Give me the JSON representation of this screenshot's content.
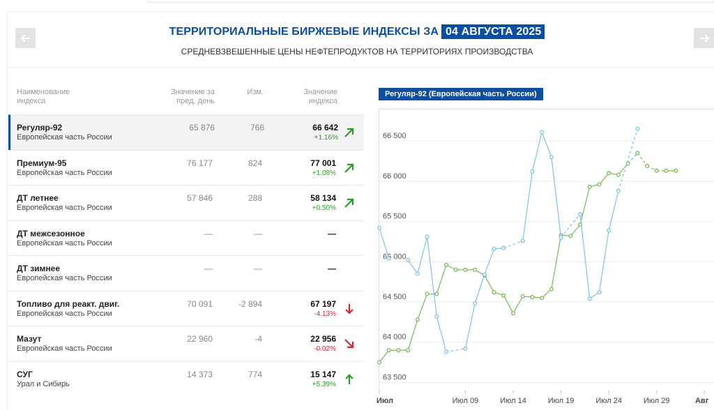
{
  "header": {
    "title": "ТЕРРИТОРИАЛЬНЫЕ БИРЖЕВЫЕ ИНДЕКСЫ ЗА",
    "date": "04 АВГУСТА 2025",
    "subtitle": "СРЕДНЕВЗВЕШЕННЫЕ ЦЕНЫ НЕФТЕПРОДУКТОВ НА ТЕРРИТОРИЯХ ПРОИЗВОДСТВА"
  },
  "nav": {
    "prev_icon": "arrow-left-icon",
    "next_icon": "arrow-right-icon"
  },
  "table": {
    "headers": {
      "name_line1": "Наименование",
      "name_line2": "индекса",
      "prev_line1": "Значение за",
      "prev_line2": "пред. день",
      "change": "Изм.",
      "current_line1": "Значение",
      "current_line2": "индекса"
    },
    "rows": [
      {
        "name": "Регуляр-92",
        "region": "Европейская часть России",
        "prev": "65 876",
        "change": "766",
        "current": "66 642",
        "pct": "+1.16%",
        "trend": "up-right"
      },
      {
        "name": "Премиум-95",
        "region": "Европейская часть России",
        "prev": "76 177",
        "change": "824",
        "current": "77 001",
        "pct": "+1.08%",
        "trend": "up-right"
      },
      {
        "name": "ДТ летнее",
        "region": "Европейская часть России",
        "prev": "57 846",
        "change": "288",
        "current": "58 134",
        "pct": "+0.50%",
        "trend": "up-right"
      },
      {
        "name": "ДТ межсезонное",
        "region": "Европейская часть России",
        "prev": "—",
        "change": "—",
        "current": "—",
        "pct": "",
        "trend": "none"
      },
      {
        "name": "ДТ зимнее",
        "region": "Европейская часть России",
        "prev": "—",
        "change": "—",
        "current": "—",
        "pct": "",
        "trend": "none"
      },
      {
        "name": "Топливо для реакт. двиг.",
        "region": "Европейская часть России",
        "prev": "70 091",
        "change": "-2 894",
        "current": "67 197",
        "pct": "-4.13%",
        "trend": "down"
      },
      {
        "name": "Мазут",
        "region": "Европейская часть России",
        "prev": "22 960",
        "change": "-4",
        "current": "22 956",
        "pct": "-0.02%",
        "trend": "down-right"
      },
      {
        "name": "СУГ",
        "region": "Урал и Сибирь",
        "prev": "14 373",
        "change": "774",
        "current": "15 147",
        "pct": "+5.39%",
        "trend": "up"
      }
    ]
  },
  "chart_label": "Регуляр-92 (Европейская часть России)",
  "colors": {
    "brand": "#0b4ea2",
    "up": "#2a9a2a",
    "down": "#d9262c",
    "series_green": "#79b957",
    "series_blue": "#7ec3e4"
  },
  "chart_data": {
    "type": "line",
    "y_ticks": [
      "63 500",
      "64 000",
      "64 500",
      "65 000",
      "65 500",
      "66 000",
      "66 500"
    ],
    "ylim": [
      63400,
      66900
    ],
    "x_ticks": [
      "Июл",
      "Июл 09",
      "Июл 14",
      "Июл 19",
      "Июл 24",
      "Июл 29",
      "Авг"
    ],
    "x_tick_days": [
      0,
      9,
      14,
      19,
      24,
      29,
      34
    ],
    "xlim": [
      0,
      35
    ],
    "series": [
      {
        "color": "#79b957",
        "points": [
          [
            0,
            63750
          ],
          [
            1,
            63900
          ],
          [
            2,
            63900
          ],
          [
            3,
            63900
          ],
          [
            4,
            64280
          ],
          [
            5,
            64600
          ],
          [
            6,
            64600
          ],
          [
            7,
            64960
          ],
          [
            8,
            64900
          ],
          [
            9,
            64900
          ],
          [
            10,
            64900
          ],
          [
            11,
            64830
          ],
          [
            12,
            64620
          ],
          [
            13,
            64580
          ],
          [
            14,
            64360
          ],
          [
            15,
            64570
          ],
          [
            16,
            64560
          ],
          [
            17,
            64550
          ],
          [
            18,
            64660
          ],
          [
            19,
            65330
          ],
          [
            20,
            65320
          ],
          [
            21,
            65460
          ],
          [
            22,
            65930
          ],
          [
            23,
            65960
          ],
          [
            24,
            66100
          ],
          [
            25,
            66080
          ],
          [
            26,
            66220
          ],
          [
            27,
            66350
          ],
          [
            28,
            66190
          ],
          [
            29,
            66130
          ],
          [
            30,
            66130
          ],
          [
            31,
            66130
          ]
        ],
        "dashed_segments": [
          [
            26,
            28
          ],
          [
            28,
            30
          ]
        ]
      },
      {
        "color": "#7ec3e4",
        "points": [
          [
            0,
            65420
          ],
          [
            1,
            65040
          ],
          [
            2,
            null
          ],
          [
            3,
            65020
          ],
          [
            4,
            64850
          ],
          [
            5,
            65310
          ],
          [
            6,
            64320
          ],
          [
            7,
            63880
          ],
          [
            8,
            null
          ],
          [
            9,
            63920
          ],
          [
            10,
            64480
          ],
          [
            11,
            64840
          ],
          [
            12,
            65160
          ],
          [
            13,
            65170
          ],
          [
            14,
            null
          ],
          [
            15,
            65260
          ],
          [
            16,
            66120
          ],
          [
            17,
            66610
          ],
          [
            18,
            66300
          ],
          [
            19,
            65300
          ],
          [
            20,
            null
          ],
          [
            21,
            65590
          ],
          [
            22,
            64540
          ],
          [
            23,
            64620
          ],
          [
            24,
            65390
          ],
          [
            25,
            65880
          ],
          [
            26,
            null
          ],
          [
            27,
            66650
          ]
        ],
        "dashed_gaps": [
          [
            7,
            9
          ],
          [
            13,
            15
          ],
          [
            19,
            21
          ],
          [
            25,
            27
          ]
        ]
      }
    ]
  }
}
